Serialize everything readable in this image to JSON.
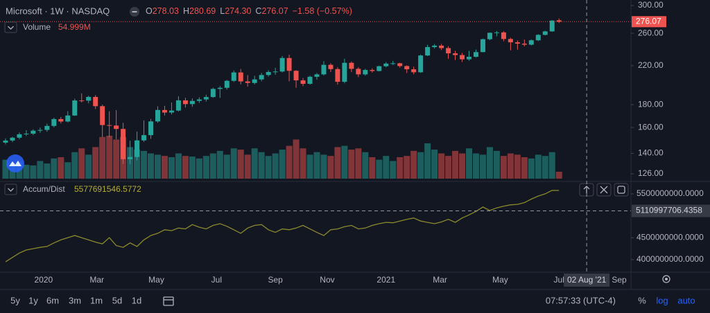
{
  "chart_data": [
    {
      "type": "candlestick",
      "title": "Microsoft · 1W · NASDAQ",
      "ohlc_keys": [
        "O",
        "H",
        "L",
        "C"
      ],
      "ohlc_labels": [
        "278.03",
        "280.69",
        "274.30",
        "276.07"
      ],
      "change_label": "−1.58 (−0.57%)",
      "volume_name": "Volume",
      "volume_last_label": "54.999M",
      "up_color": "#26a69a",
      "down_color": "#ef5350",
      "log_scale": true,
      "xlim": [
        -0.8,
        90.4
      ],
      "xticks": [
        {
          "value": 5.5,
          "label": "2020"
        },
        {
          "value": 13.2,
          "label": "Mar"
        },
        {
          "value": 21.8,
          "label": "May"
        },
        {
          "value": 30.5,
          "label": "Jul"
        },
        {
          "value": 39.0,
          "label": "Sep"
        },
        {
          "value": 46.5,
          "label": "Nov"
        },
        {
          "value": 55.0,
          "label": "2021"
        },
        {
          "value": 62.8,
          "label": "Mar"
        },
        {
          "value": 71.5,
          "label": "May"
        },
        {
          "value": 80.0,
          "label": "Jul"
        },
        {
          "value": 88.7,
          "label": "Sep"
        }
      ],
      "crosshair_x": {
        "value": 84.0,
        "label": "02 Aug '21"
      },
      "ylim": [
        122.9,
        308.7
      ],
      "yticks": [
        {
          "value": 300,
          "label": "300.00"
        },
        {
          "value": 260,
          "label": "260.00"
        },
        {
          "value": 220,
          "label": "220.00"
        },
        {
          "value": 180,
          "label": "180.00"
        },
        {
          "value": 160,
          "label": "160.00"
        },
        {
          "value": 140,
          "label": "140.00"
        },
        {
          "value": 126,
          "label": "126.00"
        }
      ],
      "open": [
        148.0,
        149.6,
        151.8,
        154.5,
        155.0,
        157.4,
        158.0,
        161.3,
        167.1,
        165.0,
        170.2,
        183.9,
        183.7,
        187.3,
        178.6,
        162.0,
        161.6,
        158.8,
        135.9,
        137.4,
        149.7,
        153.8,
        165.1,
        175.1,
        172.8,
        174.6,
        184.0,
        180.5,
        183.5,
        184.9,
        187.2,
        195.2,
        196.3,
        203.5,
        212.5,
        202.9,
        201.3,
        205.0,
        209.7,
        213.0,
        213.5,
        228.9,
        214.3,
        204.0,
        200.4,
        207.8,
        210.4,
        221.0,
        216.2,
        202.5,
        223.3,
        216.5,
        210.4,
        215.2,
        214.1,
        219.4,
        222.4,
        222.8,
        219.6,
        216.0,
        212.7,
        231.9,
        242.2,
        244.0,
        240.9,
        234.5,
        232.4,
        227.4,
        230.4,
        236.0,
        252.2,
        260.7,
        261.2,
        252.5,
        248.2,
        246.5,
        245.2,
        250.8,
        257.9,
        262.6,
        278.03
      ],
      "high": [
        151.3,
        152.5,
        155.9,
        157.8,
        158.5,
        159.9,
        163.2,
        168.3,
        168.9,
        174.0,
        185.6,
        190.7,
        188.4,
        189.0,
        180.0,
        174.0,
        175.0,
        164.0,
        149.4,
        156.7,
        166.0,
        167.3,
        178.5,
        178.8,
        182.0,
        187.9,
        186.5,
        185.9,
        187.0,
        189.5,
        196.5,
        198.0,
        204.4,
        214.7,
        216.4,
        209.5,
        208.9,
        212.0,
        215.0,
        217.6,
        231.2,
        232.9,
        215.0,
        206.4,
        209.0,
        211.9,
        225.2,
        222.8,
        218.2,
        228.1,
        224.9,
        218.3,
        216.5,
        217.0,
        220.0,
        224.2,
        225.6,
        223.4,
        220.5,
        218.9,
        232.9,
        245.1,
        245.9,
        246.1,
        243.2,
        237.5,
        235.0,
        237.5,
        239.1,
        253.0,
        261.0,
        263.2,
        262.8,
        254.1,
        250.6,
        251.7,
        252.0,
        258.9,
        263.5,
        278.1,
        280.69
      ],
      "low": [
        146.7,
        148.4,
        150.6,
        153.1,
        153.9,
        155.7,
        156.5,
        160.1,
        163.4,
        164.3,
        169.8,
        182.0,
        181.2,
        176.0,
        152.1,
        152.0,
        150.6,
        132.5,
        132.5,
        135.0,
        148.5,
        150.9,
        164.0,
        170.2,
        171.1,
        173.8,
        177.3,
        178.0,
        181.6,
        182.8,
        186.5,
        186.5,
        194.5,
        202.3,
        199.8,
        197.5,
        199.7,
        203.0,
        208.0,
        210.0,
        212.5,
        203.0,
        196.3,
        198.0,
        199.5,
        204.8,
        209.1,
        213.0,
        199.6,
        201.0,
        212.8,
        207.5,
        209.0,
        212.4,
        213.6,
        218.3,
        220.7,
        217.8,
        211.9,
        210.5,
        212.1,
        231.2,
        240.5,
        238.5,
        227.9,
        226.5,
        224.3,
        225.8,
        229.5,
        235.7,
        250.9,
        256.0,
        249.6,
        238.1,
        239.0,
        243.1,
        244.4,
        249.8,
        257.2,
        262.0,
        274.3
      ],
      "close": [
        149.6,
        151.8,
        154.5,
        155.0,
        157.4,
        158.0,
        161.3,
        167.1,
        165.0,
        170.2,
        183.9,
        183.7,
        187.3,
        178.6,
        162.0,
        161.6,
        158.8,
        135.9,
        137.4,
        149.7,
        153.8,
        165.1,
        175.1,
        172.8,
        174.6,
        184.0,
        180.5,
        183.5,
        184.9,
        187.2,
        195.2,
        196.3,
        203.5,
        212.5,
        202.9,
        201.3,
        205.0,
        209.7,
        213.0,
        213.5,
        228.9,
        214.3,
        204.0,
        200.4,
        207.8,
        210.4,
        221.0,
        216.2,
        202.5,
        223.3,
        216.5,
        210.4,
        215.2,
        214.1,
        219.4,
        222.4,
        222.8,
        219.6,
        216.0,
        212.7,
        231.9,
        242.2,
        244.0,
        240.9,
        234.5,
        232.4,
        227.4,
        230.4,
        236.0,
        252.2,
        260.7,
        261.2,
        252.5,
        248.2,
        246.5,
        245.2,
        250.8,
        257.9,
        262.6,
        277.65,
        276.07
      ],
      "volume": [
        150000000,
        120000000,
        135000000,
        110000000,
        105000000,
        140000000,
        120000000,
        160000000,
        170000000,
        130000000,
        210000000,
        240000000,
        190000000,
        250000000,
        330000000,
        340000000,
        310000000,
        330000000,
        250000000,
        230000000,
        220000000,
        200000000,
        190000000,
        180000000,
        170000000,
        200000000,
        180000000,
        175000000,
        160000000,
        180000000,
        200000000,
        220000000,
        190000000,
        240000000,
        230000000,
        190000000,
        240000000,
        210000000,
        180000000,
        200000000,
        230000000,
        260000000,
        310000000,
        240000000,
        190000000,
        210000000,
        190000000,
        180000000,
        250000000,
        260000000,
        230000000,
        240000000,
        210000000,
        170000000,
        150000000,
        180000000,
        140000000,
        170000000,
        180000000,
        220000000,
        210000000,
        280000000,
        230000000,
        200000000,
        180000000,
        220000000,
        200000000,
        240000000,
        200000000,
        190000000,
        250000000,
        220000000,
        180000000,
        200000000,
        190000000,
        170000000,
        160000000,
        190000000,
        180000000,
        210000000,
        54999000
      ]
    },
    {
      "type": "line",
      "name": "Accum/Dist",
      "color": "#8c8a2c",
      "label_color": "#b5ad3a",
      "ylim": [
        3730000000,
        5720000000
      ],
      "yticks": [
        {
          "value": 5500000000,
          "label": "5500000000.0000"
        },
        {
          "value": 4500000000,
          "label": "4500000000.0000"
        },
        {
          "value": 4000000000,
          "label": "4000000000.0000"
        }
      ],
      "crosshair_value": 5110997706.4358,
      "values": [
        3950000000,
        4050000000,
        4150000000,
        4220000000,
        4250000000,
        4280000000,
        4300000000,
        4380000000,
        4450000000,
        4500000000,
        4550000000,
        4500000000,
        4450000000,
        4400000000,
        4360000000,
        4500000000,
        4320000000,
        4280000000,
        4380000000,
        4300000000,
        4450000000,
        4550000000,
        4600000000,
        4680000000,
        4660000000,
        4720000000,
        4700000000,
        4800000000,
        4740000000,
        4700000000,
        4780000000,
        4820000000,
        4760000000,
        4680000000,
        4600000000,
        4720000000,
        4780000000,
        4800000000,
        4680000000,
        4620000000,
        4700000000,
        4680000000,
        4720000000,
        4780000000,
        4700000000,
        4620000000,
        4550000000,
        4680000000,
        4700000000,
        4750000000,
        4780000000,
        4700000000,
        4720000000,
        4780000000,
        4820000000,
        4850000000,
        4840000000,
        4880000000,
        4920000000,
        4950000000,
        4880000000,
        4850000000,
        4820000000,
        4860000000,
        4920000000,
        4850000000,
        4950000000,
        5020000000,
        5100000000,
        5200000000,
        5120000000,
        5180000000,
        5220000000,
        5250000000,
        5260000000,
        5300000000,
        5380000000,
        5450000000,
        5500000000,
        5580000000,
        5577691546.5772
      ]
    }
  ],
  "toolbar": {
    "ranges": [
      "5y",
      "1y",
      "6m",
      "3m",
      "1m",
      "5d",
      "1d"
    ],
    "time": "07:57:33 (UTC-4)",
    "percent": "%",
    "log": "log",
    "auto": "auto"
  }
}
